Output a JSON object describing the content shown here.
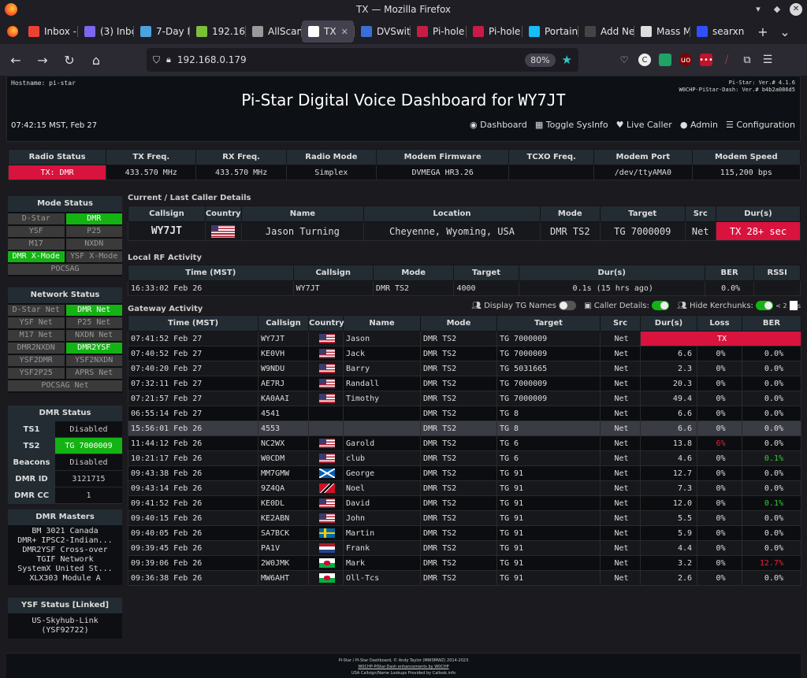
{
  "window": {
    "title": "TX — Mozilla Firefox"
  },
  "tabs": [
    {
      "label": "Inbox -",
      "color": "#ea4335"
    },
    {
      "label": "(3) Inbo",
      "color": "#7b68ee"
    },
    {
      "label": "7-Day F",
      "color": "#4aa3df"
    },
    {
      "label": "192.16",
      "color": "#7bbf3a"
    },
    {
      "label": "AllScan",
      "color": "#999999"
    },
    {
      "label": "TX",
      "color": "#ffffff",
      "active": true
    },
    {
      "label": "DVSwit",
      "color": "#3a6fd8"
    },
    {
      "label": "Pi-hole",
      "color": "#c71c46"
    },
    {
      "label": "Pi-hole",
      "color": "#c71c46"
    },
    {
      "label": "Portain",
      "color": "#13bef9"
    },
    {
      "label": "Add New F",
      "color": "#444444"
    },
    {
      "label": "Mass M",
      "color": "#dddddd"
    },
    {
      "label": "searxn",
      "color": "#3050ff"
    }
  ],
  "nav": {
    "url": "192.168.0.179",
    "zoom": "80%"
  },
  "header": {
    "hostname": "Hostname: pi-star",
    "version1": "Pi-Star: Ver.# 4.1.6",
    "version2": "W0CHP-PiStar-Dash: Ver.# b4b2a086d5",
    "title": "Pi-Star Digital Voice Dashboard for ",
    "callsign": "WY7JT",
    "time": "07:42:15 MST, Feb 27",
    "links": [
      "Dashboard",
      "Toggle SysInfo",
      "Live Caller",
      "Admin",
      "Configuration"
    ]
  },
  "radio_status": {
    "headers": [
      "Radio Status",
      "TX Freq.",
      "RX Freq.",
      "Radio Mode",
      "Modem Firmware",
      "TCXO Freq.",
      "Modem Port",
      "Modem Speed"
    ],
    "values": [
      "TX: DMR",
      "433.570 MHz",
      "433.570 MHz",
      "Simplex",
      "DVMEGA HR3.26",
      "",
      "/dev/ttyAMA0",
      "115,200 bps"
    ]
  },
  "mode_status": {
    "title": "Mode Status",
    "items": [
      {
        "label": "D-Star",
        "on": false
      },
      {
        "label": "DMR",
        "on": true
      },
      {
        "label": "YSF",
        "on": false
      },
      {
        "label": "P25",
        "on": false
      },
      {
        "label": "M17",
        "on": false
      },
      {
        "label": "NXDN",
        "on": false
      },
      {
        "label": "DMR X-Mode",
        "on": true
      },
      {
        "label": "YSF X-Mode",
        "on": false
      },
      {
        "label": "POCSAG",
        "on": false,
        "full": true
      }
    ]
  },
  "network_status": {
    "title": "Network Status",
    "items": [
      {
        "label": "D-Star Net",
        "on": false
      },
      {
        "label": "DMR Net",
        "on": true
      },
      {
        "label": "YSF Net",
        "on": false
      },
      {
        "label": "P25 Net",
        "on": false
      },
      {
        "label": "M17 Net",
        "on": false
      },
      {
        "label": "NXDN Net",
        "on": false
      },
      {
        "label": "DMR2NXDN",
        "on": false
      },
      {
        "label": "DMR2YSF",
        "on": true
      },
      {
        "label": "YSF2DMR",
        "on": false
      },
      {
        "label": "YSF2NXDN",
        "on": false
      },
      {
        "label": "YSF2P25",
        "on": false
      },
      {
        "label": "APRS Net",
        "on": false
      },
      {
        "label": "POCSAG Net",
        "on": false,
        "full": true
      }
    ]
  },
  "dmr_status": {
    "title": "DMR Status",
    "rows": [
      {
        "label": "TS1",
        "value": "Disabled",
        "on": false
      },
      {
        "label": "TS2",
        "value": "TG 7000009",
        "on": true
      },
      {
        "label": "Beacons",
        "value": "Disabled",
        "on": false
      },
      {
        "label": "DMR ID",
        "value": "3121715",
        "on": false
      },
      {
        "label": "DMR CC",
        "value": "1",
        "on": false
      }
    ]
  },
  "dmr_masters": {
    "title": "DMR Masters",
    "items": [
      "BM 3021 Canada",
      "DMR+ IPSC2-Indian...",
      "DMR2YSF Cross-over",
      "TGIF Network",
      "SystemX United St...",
      "XLX303 Module A"
    ]
  },
  "ysf_status": {
    "title": "YSF Status [Linked]",
    "line1": "US-Skyhub-Link",
    "line2": "(YSF92722)"
  },
  "current_caller": {
    "section": "Current / Last Caller Details",
    "headers": [
      "Callsign",
      "Country",
      "Name",
      "Location",
      "Mode",
      "Target",
      "Src",
      "Dur(s)"
    ],
    "callsign": "WY7JT",
    "country": "us",
    "name": "Jason Turning",
    "location": "Cheyenne, Wyoming, USA",
    "mode": "DMR TS2",
    "target": "TG 7000009",
    "src": "Net",
    "dur": "TX 28+ sec"
  },
  "local_rf": {
    "section": "Local RF Activity",
    "headers": [
      "Time (MST)",
      "Callsign",
      "Mode",
      "Target",
      "Dur(s)",
      "BER",
      "RSSI"
    ],
    "rows": [
      [
        "16:33:02 Feb 26",
        "WY7JT",
        "DMR TS2",
        "4000",
        "0.1s (15 hrs ago)",
        "0.0%",
        ""
      ]
    ]
  },
  "gateway": {
    "section": "Gateway Activity",
    "opt1": "Display TG Names",
    "opt2": "Caller Details:",
    "opt3": "Hide Kerchunks:",
    "opt3b": "< 2",
    "opt3c": "s",
    "headers": [
      "Time (MST)",
      "Callsign",
      "Country",
      "Name",
      "Mode",
      "Target",
      "Src",
      "Dur(s)",
      "Loss",
      "BER"
    ],
    "rows": [
      {
        "time": "07:41:52 Feb 27",
        "call": "WY7JT",
        "flag": "us",
        "name": "Jason",
        "mode": "DMR TS2",
        "target": "TG 7000009",
        "src": "Net",
        "dur": "TX",
        "loss": "",
        "ber": "",
        "tx": true
      },
      {
        "time": "07:40:52 Feb 27",
        "call": "KE0VH",
        "flag": "us",
        "name": "Jack",
        "mode": "DMR TS2",
        "target": "TG 7000009",
        "src": "Net",
        "dur": "6.6",
        "loss": "0%",
        "ber": "0.0%"
      },
      {
        "time": "07:40:20 Feb 27",
        "call": "W9NDU",
        "flag": "us",
        "name": "Barry",
        "mode": "DMR TS2",
        "target": "TG 5031665",
        "src": "Net",
        "dur": "2.3",
        "loss": "0%",
        "ber": "0.0%"
      },
      {
        "time": "07:32:11 Feb 27",
        "call": "AE7RJ",
        "flag": "us",
        "name": "Randall",
        "mode": "DMR TS2",
        "target": "TG 7000009",
        "src": "Net",
        "dur": "20.3",
        "loss": "0%",
        "ber": "0.0%"
      },
      {
        "time": "07:21:57 Feb 27",
        "call": "KA0AAI",
        "flag": "us",
        "name": "Timothy",
        "mode": "DMR TS2",
        "target": "TG 7000009",
        "src": "Net",
        "dur": "49.4",
        "loss": "0%",
        "ber": "0.0%"
      },
      {
        "time": "06:55:14 Feb 27",
        "call": "4541",
        "flag": "",
        "name": "",
        "mode": "DMR TS2",
        "target": "TG 8",
        "src": "Net",
        "dur": "6.6",
        "loss": "0%",
        "ber": "0.0%"
      },
      {
        "time": "15:56:01 Feb 26",
        "call": "4553",
        "flag": "",
        "name": "",
        "mode": "DMR TS2",
        "target": "TG 8",
        "src": "Net",
        "dur": "6.6",
        "loss": "0%",
        "ber": "0.0%",
        "hl": true
      },
      {
        "time": "11:44:12 Feb 26",
        "call": "NC2WX",
        "flag": "us",
        "name": "Garold",
        "mode": "DMR TS2",
        "target": "TG 6",
        "src": "Net",
        "dur": "13.8",
        "loss": "6%",
        "ber": "0.0%",
        "lossred": true
      },
      {
        "time": "10:21:17 Feb 26",
        "call": "W0CDM",
        "flag": "us",
        "name": "club",
        "mode": "DMR TS2",
        "target": "TG 6",
        "src": "Net",
        "dur": "4.6",
        "loss": "0%",
        "ber": "0.1%",
        "bergreen": true
      },
      {
        "time": "09:43:38 Feb 26",
        "call": "MM7GMW",
        "flag": "sc",
        "name": "George",
        "mode": "DMR TS2",
        "target": "TG 91",
        "src": "Net",
        "dur": "12.7",
        "loss": "0%",
        "ber": "0.0%"
      },
      {
        "time": "09:43:14 Feb 26",
        "call": "9Z4QA",
        "flag": "tt",
        "name": "Noel",
        "mode": "DMR TS2",
        "target": "TG 91",
        "src": "Net",
        "dur": "7.3",
        "loss": "0%",
        "ber": "0.0%"
      },
      {
        "time": "09:41:52 Feb 26",
        "call": "KE0DL",
        "flag": "us",
        "name": "David",
        "mode": "DMR TS2",
        "target": "TG 91",
        "src": "Net",
        "dur": "12.0",
        "loss": "0%",
        "ber": "0.1%",
        "bergreen": true
      },
      {
        "time": "09:40:15 Feb 26",
        "call": "KE2ABN",
        "flag": "us",
        "name": "John",
        "mode": "DMR TS2",
        "target": "TG 91",
        "src": "Net",
        "dur": "5.5",
        "loss": "0%",
        "ber": "0.0%"
      },
      {
        "time": "09:40:05 Feb 26",
        "call": "SA7BCK",
        "flag": "se",
        "name": "Martin",
        "mode": "DMR TS2",
        "target": "TG 91",
        "src": "Net",
        "dur": "5.9",
        "loss": "0%",
        "ber": "0.0%"
      },
      {
        "time": "09:39:45 Feb 26",
        "call": "PA1V",
        "flag": "nl",
        "name": "Frank",
        "mode": "DMR TS2",
        "target": "TG 91",
        "src": "Net",
        "dur": "4.4",
        "loss": "0%",
        "ber": "0.0%"
      },
      {
        "time": "09:39:06 Feb 26",
        "call": "2W0JMK",
        "flag": "wa",
        "name": "Mark",
        "mode": "DMR TS2",
        "target": "TG 91",
        "src": "Net",
        "dur": "3.2",
        "loss": "0%",
        "ber": "12.7%",
        "berred": true
      },
      {
        "time": "09:36:38 Feb 26",
        "call": "MW6AHT",
        "flag": "wa",
        "name": "Oll-Tcs",
        "mode": "DMR TS2",
        "target": "TG 91",
        "src": "Net",
        "dur": "2.6",
        "loss": "0%",
        "ber": "0.0%"
      }
    ]
  },
  "footer": {
    "line1": "Pi-Star / Pi-Star Dashboard, © Andy Taylor (MW0MWZ) 2014-2023",
    "line2": "W0CHP-PiStar-Dash enhancements by W0CHP",
    "line3": "USA Callsign/Name Lookups Provided by Callook.info"
  },
  "colors": {
    "tx_red": "#d8133e",
    "on_green": "#13b313",
    "header_bg": "#232c33"
  }
}
